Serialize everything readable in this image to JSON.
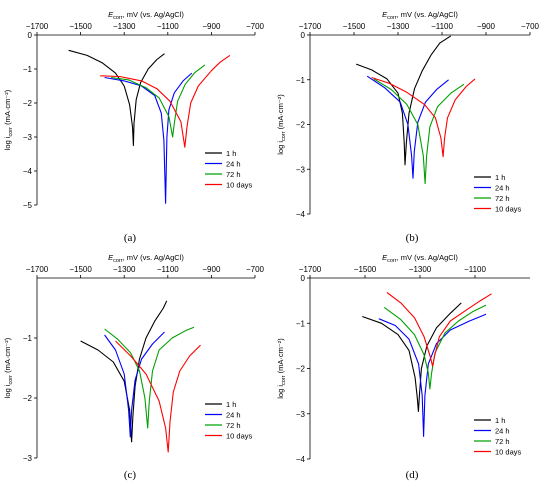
{
  "chart_data": [
    {
      "type": "line",
      "panel_label": "(a)",
      "xlabel_main": "E",
      "xlabel_sub": "corr",
      "xlabel_rest": ", mV (vs. Ag/AgCl)",
      "ylabel_main": "log i",
      "ylabel_sub": "corr",
      "ylabel_rest": " (mA·cm⁻²)",
      "xlim": [
        -1700,
        -700
      ],
      "ylim": [
        -5,
        0
      ],
      "xticks": [
        "−1700",
        "−1500",
        "−1300",
        "−1100",
        "−900",
        "−700"
      ],
      "yticks": [
        "0",
        "−1",
        "−2",
        "−3",
        "−4",
        "−5"
      ],
      "legend": [
        "1 h",
        "24 h",
        "72 h",
        "10 days"
      ],
      "series": [
        {
          "name": "1 h",
          "color": "#000000",
          "points": [
            [
              -1555,
              -0.45
            ],
            [
              -1470,
              -0.6
            ],
            [
              -1400,
              -0.82
            ],
            [
              -1340,
              -1.12
            ],
            [
              -1300,
              -1.5
            ],
            [
              -1275,
              -2.05
            ],
            [
              -1262,
              -2.7
            ],
            [
              -1258,
              -3.25
            ],
            [
              -1255,
              -2.6
            ],
            [
              -1245,
              -1.9
            ],
            [
              -1225,
              -1.4
            ],
            [
              -1190,
              -1.0
            ],
            [
              -1150,
              -0.72
            ],
            [
              -1115,
              -0.55
            ]
          ]
        },
        {
          "name": "24 h",
          "color": "#0000ff",
          "points": [
            [
              -1390,
              -1.25
            ],
            [
              -1300,
              -1.35
            ],
            [
              -1220,
              -1.5
            ],
            [
              -1160,
              -1.78
            ],
            [
              -1130,
              -2.3
            ],
            [
              -1118,
              -3.1
            ],
            [
              -1110,
              -4.95
            ],
            [
              -1104,
              -3.0
            ],
            [
              -1095,
              -2.2
            ],
            [
              -1070,
              -1.7
            ],
            [
              -1030,
              -1.35
            ],
            [
              -990,
              -1.12
            ]
          ]
        },
        {
          "name": "72 h",
          "color": "#00a000",
          "points": [
            [
              -1360,
              -1.25
            ],
            [
              -1280,
              -1.32
            ],
            [
              -1200,
              -1.55
            ],
            [
              -1140,
              -1.85
            ],
            [
              -1095,
              -2.4
            ],
            [
              -1078,
              -3.0
            ],
            [
              -1070,
              -2.6
            ],
            [
              -1055,
              -1.95
            ],
            [
              -1020,
              -1.45
            ],
            [
              -975,
              -1.1
            ],
            [
              -930,
              -0.88
            ]
          ]
        },
        {
          "name": "10 days",
          "color": "#ff0000",
          "points": [
            [
              -1410,
              -1.2
            ],
            [
              -1320,
              -1.22
            ],
            [
              -1220,
              -1.35
            ],
            [
              -1150,
              -1.58
            ],
            [
              -1090,
              -1.95
            ],
            [
              -1040,
              -2.55
            ],
            [
              -1022,
              -3.3
            ],
            [
              -1012,
              -2.7
            ],
            [
              -995,
              -2.0
            ],
            [
              -960,
              -1.5
            ],
            [
              -900,
              -1.05
            ],
            [
              -860,
              -0.8
            ],
            [
              -815,
              -0.6
            ]
          ]
        }
      ]
    },
    {
      "type": "line",
      "panel_label": "(b)",
      "xlabel_main": "E",
      "xlabel_sub": "corr",
      "xlabel_rest": ", mV (vs. Ag/AgCl)",
      "ylabel_main": "log i",
      "ylabel_sub": "corr",
      "ylabel_rest": " (mA·cm⁻²)",
      "xlim": [
        -1700,
        -700
      ],
      "ylim": [
        -4,
        0
      ],
      "xticks": [
        "−1700",
        "−1500",
        "−1300",
        "−1100",
        "−900",
        "−700"
      ],
      "yticks": [
        "0",
        "−1",
        "−2",
        "−3",
        "−4"
      ],
      "legend": [
        "1 h",
        "24 h",
        "72 h",
        "10 days"
      ],
      "series": [
        {
          "name": "1 h",
          "color": "#000000",
          "points": [
            [
              -1490,
              -0.65
            ],
            [
              -1420,
              -0.78
            ],
            [
              -1350,
              -0.98
            ],
            [
              -1300,
              -1.3
            ],
            [
              -1280,
              -1.75
            ],
            [
              -1272,
              -2.4
            ],
            [
              -1268,
              -2.9
            ],
            [
              -1262,
              -2.4
            ],
            [
              -1250,
              -1.75
            ],
            [
              -1225,
              -1.2
            ],
            [
              -1190,
              -0.8
            ],
            [
              -1150,
              -0.45
            ],
            [
              -1110,
              -0.18
            ],
            [
              -1060,
              -0.02
            ]
          ]
        },
        {
          "name": "24 h",
          "color": "#0000ff",
          "points": [
            [
              -1440,
              -0.92
            ],
            [
              -1360,
              -1.18
            ],
            [
              -1290,
              -1.5
            ],
            [
              -1255,
              -2.0
            ],
            [
              -1238,
              -2.7
            ],
            [
              -1232,
              -3.2
            ],
            [
              -1226,
              -2.6
            ],
            [
              -1210,
              -1.95
            ],
            [
              -1175,
              -1.5
            ],
            [
              -1125,
              -1.22
            ],
            [
              -1070,
              -1.0
            ]
          ]
        },
        {
          "name": "72 h",
          "color": "#00a000",
          "points": [
            [
              -1410,
              -0.98
            ],
            [
              -1330,
              -1.22
            ],
            [
              -1260,
              -1.55
            ],
            [
              -1210,
              -2.0
            ],
            [
              -1185,
              -2.7
            ],
            [
              -1177,
              -3.32
            ],
            [
              -1170,
              -2.7
            ],
            [
              -1155,
              -2.05
            ],
            [
              -1120,
              -1.6
            ],
            [
              -1060,
              -1.3
            ],
            [
              -1000,
              -1.1
            ]
          ]
        },
        {
          "name": "10 days",
          "color": "#ff0000",
          "points": [
            [
              -1420,
              -0.95
            ],
            [
              -1340,
              -1.08
            ],
            [
              -1260,
              -1.28
            ],
            [
              -1180,
              -1.55
            ],
            [
              -1130,
              -1.85
            ],
            [
              -1105,
              -2.3
            ],
            [
              -1095,
              -2.72
            ],
            [
              -1088,
              -2.3
            ],
            [
              -1075,
              -1.85
            ],
            [
              -1040,
              -1.45
            ],
            [
              -990,
              -1.15
            ],
            [
              -950,
              -0.98
            ]
          ]
        }
      ]
    },
    {
      "type": "line",
      "panel_label": "(c)",
      "xlabel_main": "E",
      "xlabel_sub": "corr",
      "xlabel_rest": ", mV (vs. Ag/AgCl)",
      "ylabel_main": "log i",
      "ylabel_sub": "corr",
      "ylabel_rest": " (mA·cm⁻²)",
      "xlim": [
        -1700,
        -700
      ],
      "ylim": [
        -3,
        0
      ],
      "xticks": [
        "−1700",
        "−1500",
        "−1300",
        "−1100",
        "−900",
        "−700"
      ],
      "yticks": [
        "−1",
        "−2",
        "−3"
      ],
      "legend": [
        "1 h",
        "24 h",
        "72 h",
        "10 days"
      ],
      "series": [
        {
          "name": "1 h",
          "color": "#000000",
          "points": [
            [
              -1500,
              -1.05
            ],
            [
              -1420,
              -1.2
            ],
            [
              -1350,
              -1.4
            ],
            [
              -1300,
              -1.72
            ],
            [
              -1275,
              -2.2
            ],
            [
              -1266,
              -2.73
            ],
            [
              -1260,
              -2.3
            ],
            [
              -1250,
              -1.8
            ],
            [
              -1230,
              -1.35
            ],
            [
              -1200,
              -1.0
            ],
            [
              -1160,
              -0.72
            ],
            [
              -1120,
              -0.5
            ],
            [
              -1105,
              -0.38
            ]
          ]
        },
        {
          "name": "24 h",
          "color": "#0000ff",
          "points": [
            [
              -1390,
              -0.95
            ],
            [
              -1340,
              -1.2
            ],
            [
              -1300,
              -1.6
            ],
            [
              -1280,
              -2.2
            ],
            [
              -1272,
              -2.65
            ],
            [
              -1266,
              -2.2
            ],
            [
              -1250,
              -1.7
            ],
            [
              -1220,
              -1.35
            ],
            [
              -1170,
              -1.1
            ],
            [
              -1115,
              -0.9
            ]
          ]
        },
        {
          "name": "72 h",
          "color": "#00a000",
          "points": [
            [
              -1390,
              -0.85
            ],
            [
              -1330,
              -1.02
            ],
            [
              -1270,
              -1.25
            ],
            [
              -1230,
              -1.55
            ],
            [
              -1205,
              -2.0
            ],
            [
              -1192,
              -2.5
            ],
            [
              -1185,
              -2.05
            ],
            [
              -1170,
              -1.55
            ],
            [
              -1140,
              -1.2
            ],
            [
              -1080,
              -1.0
            ],
            [
              -1020,
              -0.88
            ],
            [
              -980,
              -0.82
            ]
          ]
        },
        {
          "name": "10 days",
          "color": "#ff0000",
          "points": [
            [
              -1340,
              -1.05
            ],
            [
              -1270,
              -1.3
            ],
            [
              -1200,
              -1.6
            ],
            [
              -1140,
              -2.05
            ],
            [
              -1110,
              -2.5
            ],
            [
              -1098,
              -2.9
            ],
            [
              -1090,
              -2.4
            ],
            [
              -1075,
              -1.9
            ],
            [
              -1045,
              -1.55
            ],
            [
              -1000,
              -1.3
            ],
            [
              -950,
              -1.12
            ]
          ]
        }
      ]
    },
    {
      "type": "line",
      "panel_label": "(d)",
      "xlabel_main": "E",
      "xlabel_sub": "corr",
      "xlabel_rest": ", mV (vs. Ag/AgCl)",
      "ylabel_main": "log i",
      "ylabel_sub": "corr",
      "ylabel_rest": " (mA·cm⁻²)",
      "xlim": [
        -1700,
        -900
      ],
      "ylim": [
        -4,
        0
      ],
      "xticks": [
        "−1700",
        "−1500",
        "−1300",
        "−1100"
      ],
      "yticks": [
        "0",
        "−1",
        "−2",
        "−3",
        "−4"
      ],
      "legend": [
        "1 h",
        "24 h",
        "72 h",
        "10 days"
      ],
      "series": [
        {
          "name": "1 h",
          "color": "#000000",
          "points": [
            [
              -1510,
              -0.85
            ],
            [
              -1440,
              -1.0
            ],
            [
              -1380,
              -1.25
            ],
            [
              -1340,
              -1.6
            ],
            [
              -1318,
              -2.2
            ],
            [
              -1310,
              -2.65
            ],
            [
              -1306,
              -2.95
            ],
            [
              -1302,
              -2.6
            ],
            [
              -1295,
              -2.0
            ],
            [
              -1275,
              -1.5
            ],
            [
              -1240,
              -1.1
            ],
            [
              -1190,
              -0.78
            ],
            [
              -1150,
              -0.55
            ]
          ]
        },
        {
          "name": "24 h",
          "color": "#0000ff",
          "points": [
            [
              -1450,
              -0.9
            ],
            [
              -1390,
              -1.05
            ],
            [
              -1340,
              -1.35
            ],
            [
              -1305,
              -1.9
            ],
            [
              -1292,
              -2.6
            ],
            [
              -1287,
              -3.5
            ],
            [
              -1282,
              -2.6
            ],
            [
              -1270,
              -1.9
            ],
            [
              -1240,
              -1.45
            ],
            [
              -1190,
              -1.15
            ],
            [
              -1120,
              -0.95
            ],
            [
              -1060,
              -0.8
            ]
          ]
        },
        {
          "name": "72 h",
          "color": "#00a000",
          "points": [
            [
              -1430,
              -0.65
            ],
            [
              -1370,
              -0.92
            ],
            [
              -1320,
              -1.25
            ],
            [
              -1285,
              -1.7
            ],
            [
              -1270,
              -2.1
            ],
            [
              -1264,
              -2.45
            ],
            [
              -1258,
              -2.1
            ],
            [
              -1245,
              -1.65
            ],
            [
              -1210,
              -1.22
            ],
            [
              -1160,
              -0.95
            ],
            [
              -1110,
              -0.75
            ],
            [
              -1060,
              -0.6
            ]
          ]
        },
        {
          "name": "10 days",
          "color": "#ff0000",
          "points": [
            [
              -1420,
              -0.32
            ],
            [
              -1370,
              -0.55
            ],
            [
              -1320,
              -0.88
            ],
            [
              -1285,
              -1.3
            ],
            [
              -1262,
              -1.75
            ],
            [
              -1254,
              -1.95
            ],
            [
              -1248,
              -1.75
            ],
            [
              -1230,
              -1.3
            ],
            [
              -1190,
              -0.95
            ],
            [
              -1130,
              -0.7
            ],
            [
              -1080,
              -0.5
            ],
            [
              -1040,
              -0.35
            ]
          ]
        }
      ]
    }
  ]
}
